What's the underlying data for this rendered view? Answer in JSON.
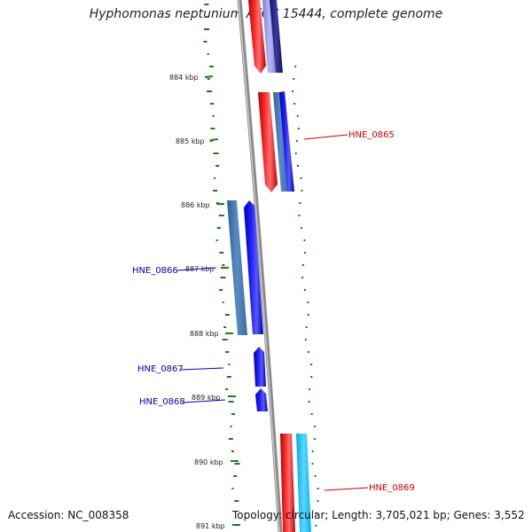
{
  "title": "Hyphomonas neptunium ATCC 15444, complete genome",
  "footer": {
    "accession": "Accession: NC_008358",
    "topology": "Topology: circular; Length: 3,705,021 bp; Genes: 3,552"
  },
  "ticks": [
    "884 kbp",
    "885 kbp",
    "886 kbp",
    "887 kbp",
    "888 kbp",
    "889 kbp",
    "890 kbp",
    "891 kbp"
  ],
  "gene_labels": [
    {
      "text": "HNE_0865",
      "color": "#cc0000"
    },
    {
      "text": "HNE_0866",
      "color": "#0000bb"
    },
    {
      "text": "HNE_0867",
      "color": "#0000bb"
    },
    {
      "text": "HNE_0868",
      "color": "#0000bb"
    },
    {
      "text": "HNE_0869",
      "color": "#cc0000"
    }
  ],
  "colors": {
    "backbone": "#8a8a8a",
    "forward_cds": "#ff0000",
    "reverse_cds": "#0000ff",
    "gc_skew_dots": "#1a7a1a",
    "steelblue_feature": "#4f82b8",
    "cyan_feature": "#19c7ff"
  }
}
